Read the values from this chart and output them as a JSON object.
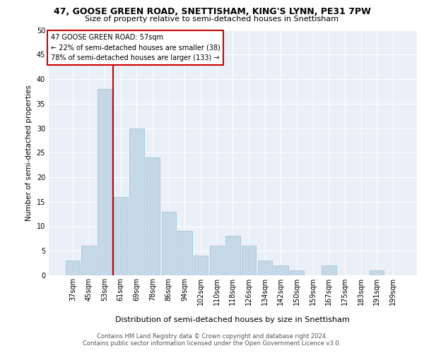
{
  "title1": "47, GOOSE GREEN ROAD, SNETTISHAM, KING'S LYNN, PE31 7PW",
  "title2": "Size of property relative to semi-detached houses in Snettisham",
  "xlabel": "Distribution of semi-detached houses by size in Snettisham",
  "ylabel": "Number of semi-detached properties",
  "footer1": "Contains HM Land Registry data © Crown copyright and database right 2024.",
  "footer2": "Contains public sector information licensed under the Open Government Licence v3.0.",
  "annotation_title": "47 GOOSE GREEN ROAD: 57sqm",
  "annotation_line1": "← 22% of semi-detached houses are smaller (38)",
  "annotation_line2": "78% of semi-detached houses are larger (133) →",
  "bar_labels": [
    "37sqm",
    "45sqm",
    "53sqm",
    "61sqm",
    "69sqm",
    "78sqm",
    "86sqm",
    "94sqm",
    "102sqm",
    "110sqm",
    "118sqm",
    "126sqm",
    "134sqm",
    "142sqm",
    "150sqm",
    "159sqm",
    "167sqm",
    "175sqm",
    "183sqm",
    "191sqm",
    "199sqm"
  ],
  "bar_values": [
    3,
    6,
    38,
    16,
    30,
    24,
    13,
    9,
    4,
    6,
    8,
    6,
    3,
    2,
    1,
    0,
    2,
    0,
    0,
    1,
    0
  ],
  "bar_color": "#c5d8e8",
  "bar_edge_color": "#a0bdd0",
  "property_line_color": "#cc0000",
  "annotation_box_color": "#cc0000",
  "ylim": [
    0,
    50
  ],
  "yticks": [
    0,
    5,
    10,
    15,
    20,
    25,
    30,
    35,
    40,
    45,
    50
  ],
  "plot_bg_color": "#eaf0f7",
  "title1_fontsize": 9,
  "title2_fontsize": 8,
  "ylabel_fontsize": 7.5,
  "xlabel_fontsize": 8,
  "tick_fontsize": 7,
  "footer_fontsize": 6,
  "annotation_fontsize": 7
}
